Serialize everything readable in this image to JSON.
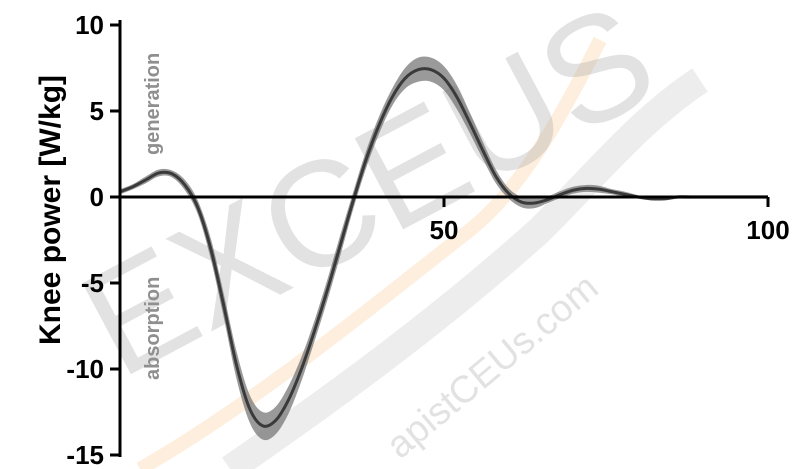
{
  "colors": {
    "line": "#3a3a3a",
    "band": "#6f6f6f",
    "axis": "#000000",
    "annotation": "#8f8f8f",
    "watermark_gray": "#9a9a9a",
    "watermark_orange": "#f4a340"
  },
  "watermark": {
    "text_large": "EXCEUS",
    "text_small": "apistCEUs.com"
  },
  "chart_data": {
    "type": "line",
    "title": "",
    "xlabel": "",
    "ylabel": "Knee power [W/kg]",
    "xlim": [
      0,
      100
    ],
    "ylim": [
      -15,
      10
    ],
    "x_ticks": [
      "50",
      "100"
    ],
    "y_ticks": [
      "10",
      "5",
      "0",
      "-5",
      "-10",
      "-15"
    ],
    "x_tick_values": [
      50,
      100
    ],
    "y_tick_values": [
      10,
      5,
      0,
      -5,
      -10,
      -15
    ],
    "annotations": [
      "generation",
      "absorption"
    ],
    "grid": false,
    "legend": "none",
    "series": [
      {
        "x": [
          0,
          2,
          4,
          6,
          8,
          10,
          12,
          14,
          16,
          18,
          20,
          22,
          24,
          26,
          28,
          30,
          32,
          34,
          36,
          38,
          40,
          42,
          44,
          46,
          48,
          50,
          52,
          54,
          56,
          58,
          60,
          62,
          64,
          66,
          68,
          70,
          72,
          74,
          76,
          78,
          80,
          82,
          84,
          86,
          88,
          90,
          92,
          94,
          96,
          98,
          100
        ],
        "y": [
          0.3,
          0.6,
          1.0,
          1.4,
          1.35,
          0.7,
          -0.6,
          -3.0,
          -6.3,
          -9.8,
          -12.3,
          -13.3,
          -13.0,
          -11.8,
          -10.0,
          -7.8,
          -5.4,
          -2.8,
          -0.2,
          2.2,
          4.2,
          5.8,
          6.9,
          7.4,
          7.4,
          6.9,
          5.8,
          4.3,
          2.7,
          1.2,
          0.2,
          -0.3,
          -0.35,
          -0.15,
          0.15,
          0.4,
          0.5,
          0.45,
          0.3,
          0.15,
          0.0,
          -0.1,
          -0.1,
          0.0,
          0.0,
          0.0,
          0.0,
          0.0,
          0.0,
          0.0,
          0.0
        ],
        "band_halfwidth": [
          0.15,
          0.15,
          0.2,
          0.2,
          0.2,
          0.3,
          0.4,
          0.6,
          0.7,
          0.8,
          0.8,
          0.8,
          0.8,
          0.8,
          0.7,
          0.6,
          0.6,
          0.6,
          0.5,
          0.5,
          0.5,
          0.5,
          0.6,
          0.7,
          0.7,
          0.7,
          0.7,
          0.6,
          0.5,
          0.4,
          0.3,
          0.3,
          0.3,
          0.2,
          0.2,
          0.2,
          0.2,
          0.2,
          0.15,
          0.15,
          0.1,
          0.1,
          0.1,
          0.1,
          0.1,
          0.1,
          0.1,
          0.1,
          0.1,
          0.1,
          0.1
        ]
      }
    ]
  }
}
